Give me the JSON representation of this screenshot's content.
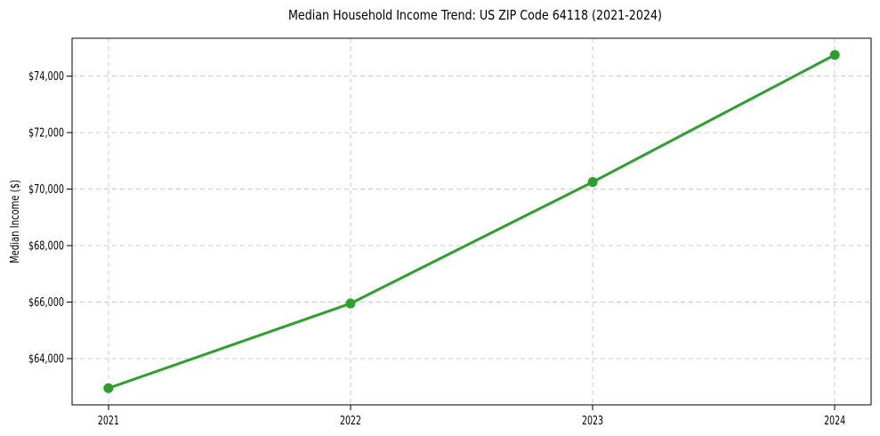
{
  "chart_data": {
    "type": "line",
    "title": "Median Household Income Trend: US ZIP Code 64118 (2021-2024)",
    "xlabel": "",
    "ylabel": "Median Income ($)",
    "x": [
      2021,
      2022,
      2023,
      2024
    ],
    "x_tick_labels": [
      "2021",
      "2022",
      "2023",
      "2024"
    ],
    "y_ticks": [
      64000,
      66000,
      68000,
      70000,
      72000,
      74000
    ],
    "y_tick_labels": [
      "$64,000",
      "$66,000",
      "$68,000",
      "$70,000",
      "$72,000",
      "$74,000"
    ],
    "series": [
      {
        "name": "Median Household Income",
        "values": [
          62950,
          65950,
          70250,
          74750
        ]
      }
    ],
    "xlim": [
      2020.85,
      2024.15
    ],
    "ylim": [
      62360,
      75340
    ],
    "grid": true,
    "grid_style": "dashed",
    "legend": "none",
    "colors": {
      "line": "#2ca02c",
      "marker": "#2ca02c",
      "grid": "#cccccc",
      "axis": "#000000",
      "text": "#000000",
      "background": "#ffffff"
    }
  }
}
